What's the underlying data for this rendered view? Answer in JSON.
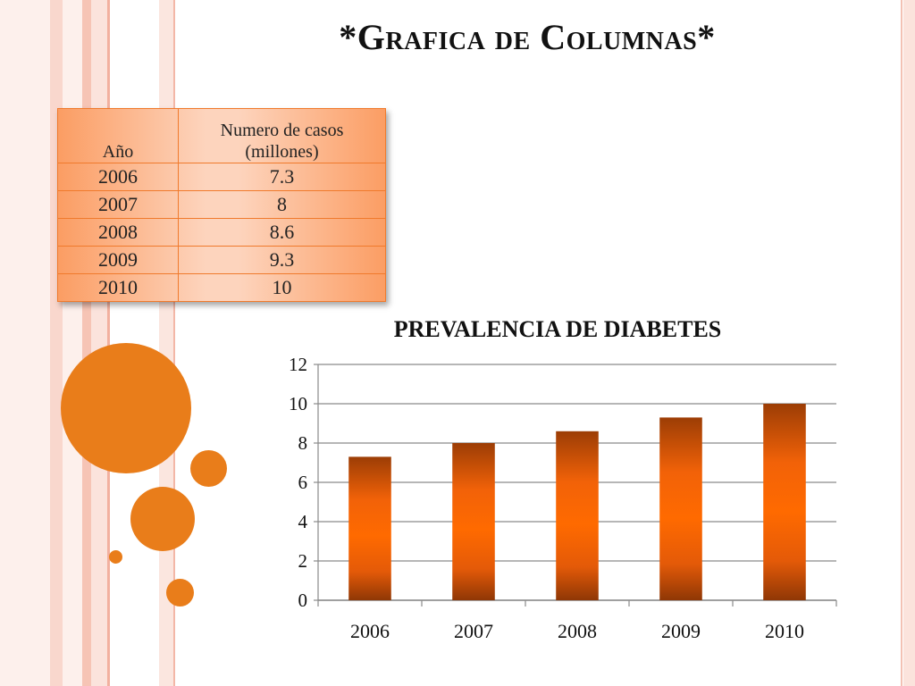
{
  "slide": {
    "title": "*Grafica de Columnas*"
  },
  "table": {
    "headers": [
      "Año",
      "Numero de casos (millones)"
    ],
    "header_line1": "Numero de casos",
    "header_line2": "(millones)",
    "rows": [
      {
        "year": "2006",
        "cases": "7.3"
      },
      {
        "year": "2007",
        "cases": "8"
      },
      {
        "year": "2008",
        "cases": "8.6"
      },
      {
        "year": "2009",
        "cases": "9.3"
      },
      {
        "year": "2010",
        "cases": "10"
      }
    ]
  },
  "chart_data": {
    "type": "bar",
    "title": "PREVALENCIA DE DIABETES",
    "categories": [
      "2006",
      "2007",
      "2008",
      "2009",
      "2010"
    ],
    "values": [
      7.3,
      8,
      8.6,
      9.3,
      10
    ],
    "xlabel": "",
    "ylabel": "",
    "ylim": [
      0,
      12
    ],
    "yticks": [
      0,
      2,
      4,
      6,
      8,
      10,
      12
    ],
    "grid": true,
    "legend": "none",
    "bar_color": "#ff6600"
  },
  "colors": {
    "accent": "#e97d1a",
    "stripe_light": "#fbe3dc",
    "stripe_mid": "#f6c9bd",
    "table_border": "#f07a2c"
  }
}
